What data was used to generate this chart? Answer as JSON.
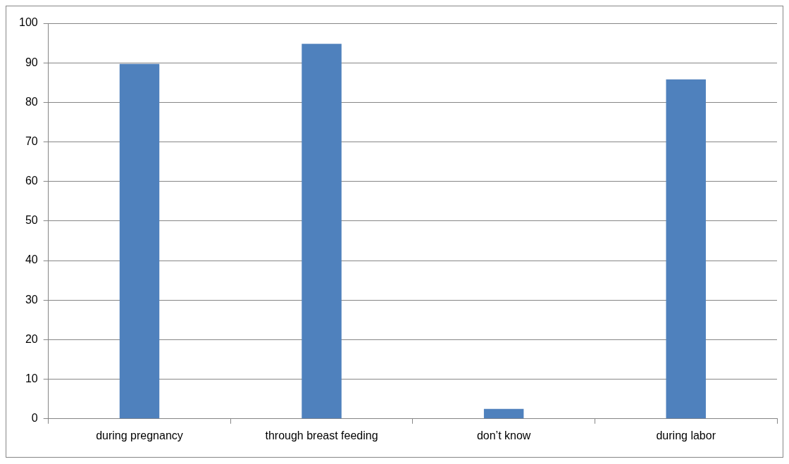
{
  "chart_data": {
    "type": "bar",
    "categories": [
      "during pregnancy",
      "through breast feeding",
      "don’t know",
      "during labor"
    ],
    "values": [
      89.7,
      94.8,
      2.5,
      85.8
    ],
    "color": "#4f81bd",
    "ylim": [
      0,
      100
    ],
    "yticks": [
      0,
      10,
      20,
      30,
      40,
      50,
      60,
      70,
      80,
      90,
      100
    ],
    "grid": "y",
    "legend": false
  }
}
